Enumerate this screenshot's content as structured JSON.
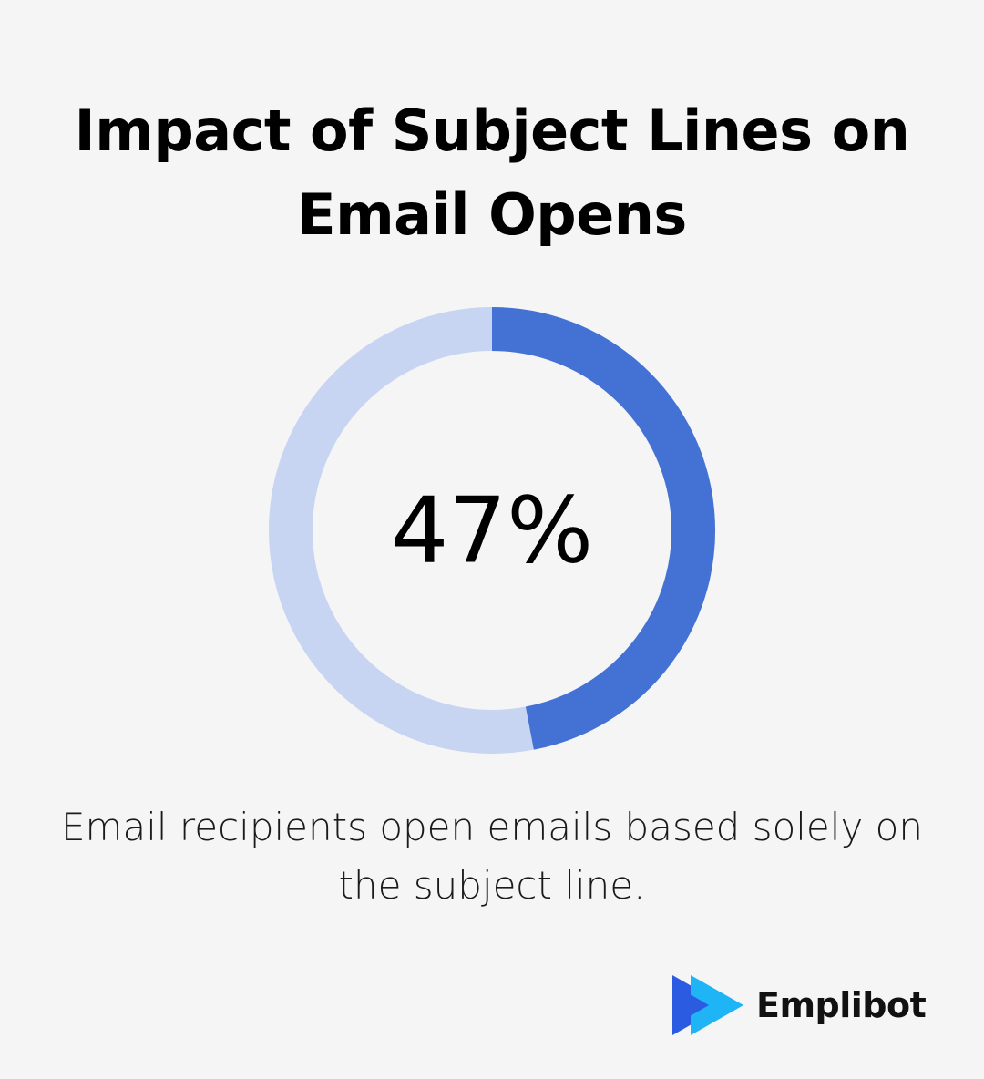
{
  "title": "Impact of Subject Lines on Email Opens",
  "description": "Email recipients open emails based solely on the subject line.",
  "brand": {
    "name": "Emplibot",
    "logo_icon": "play-triangle-logo-icon"
  },
  "colors": {
    "filled": "#4472d4",
    "track": "#c7d5f2",
    "background": "#f5f5f5",
    "logo_dark": "#2b5be0",
    "logo_light": "#1fb4f5"
  },
  "chart_data": {
    "type": "pie",
    "value": 47,
    "value_label": "47%",
    "max": 100,
    "style": "donut"
  }
}
